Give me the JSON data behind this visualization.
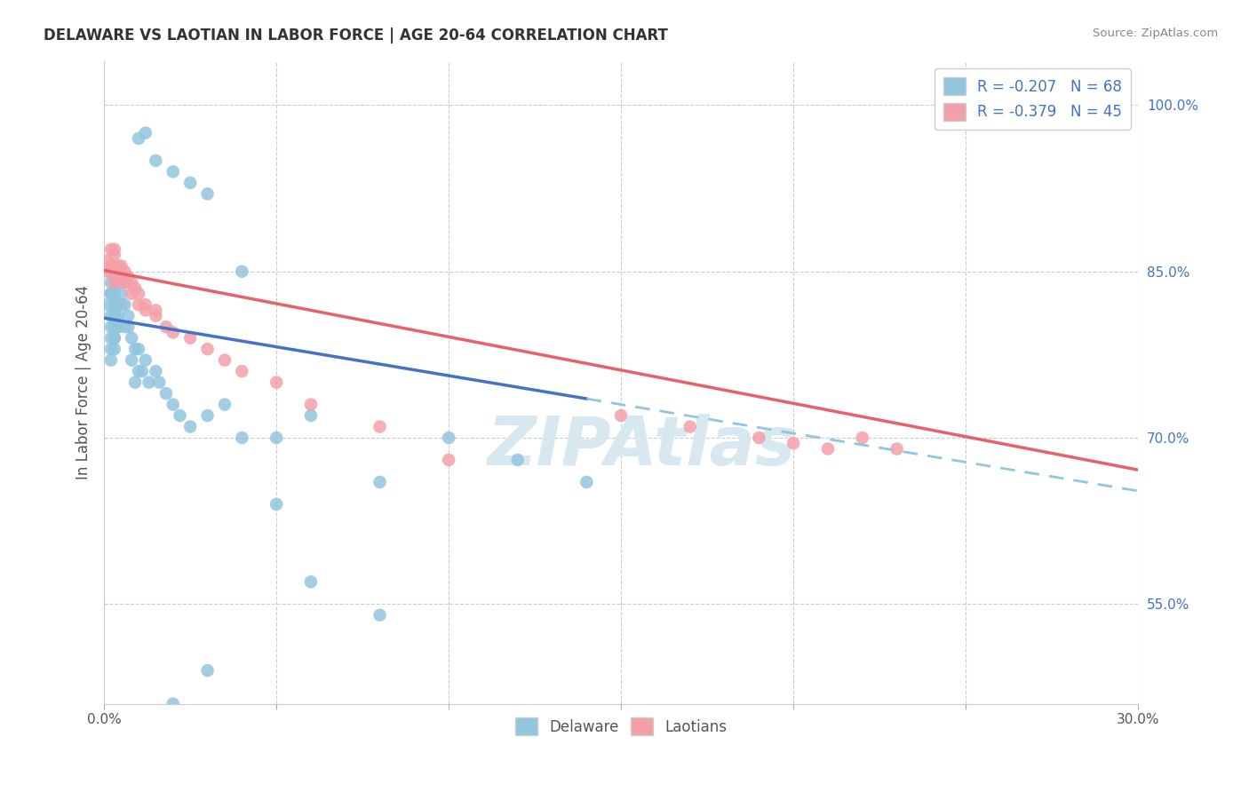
{
  "title": "DELAWARE VS LAOTIAN IN LABOR FORCE | AGE 20-64 CORRELATION CHART",
  "source": "Source: ZipAtlas.com",
  "ylabel": "In Labor Force | Age 20-64",
  "xlim": [
    0.0,
    0.3
  ],
  "ylim": [
    0.46,
    1.04
  ],
  "xticks": [
    0.0,
    0.05,
    0.1,
    0.15,
    0.2,
    0.25,
    0.3
  ],
  "xtick_labels": [
    "0.0%",
    "",
    "",
    "",
    "",
    "",
    "30.0%"
  ],
  "yticks_right": [
    0.55,
    0.7,
    0.85,
    1.0
  ],
  "ytick_right_labels": [
    "55.0%",
    "70.0%",
    "85.0%",
    "100.0%"
  ],
  "legend_r_delaware": "R = -0.207",
  "legend_n_delaware": "N = 68",
  "legend_r_laotian": "R = -0.379",
  "legend_n_laotian": "N = 45",
  "delaware_color": "#92C5DE",
  "laotian_color": "#F4A0A8",
  "trend_delaware_color": "#4472C4",
  "trend_laotian_color": "#E8606A",
  "trend_dashed_color": "#92C5DE",
  "watermark": "ZIPAtlas",
  "background_color": "#FFFFFF",
  "del_x": [
    0.001,
    0.004,
    0.003,
    0.002,
    0.003,
    0.002,
    0.003,
    0.002,
    0.003,
    0.002,
    0.003,
    0.002,
    0.004,
    0.003,
    0.002,
    0.003,
    0.004,
    0.003,
    0.002,
    0.003,
    0.004,
    0.003,
    0.002,
    0.004,
    0.003,
    0.005,
    0.004,
    0.006,
    0.005,
    0.007,
    0.006,
    0.008,
    0.007,
    0.009,
    0.008,
    0.01,
    0.009,
    0.01,
    0.012,
    0.011,
    0.015,
    0.013,
    0.018,
    0.016,
    0.02,
    0.022,
    0.025,
    0.03,
    0.035,
    0.04,
    0.01,
    0.012,
    0.015,
    0.02,
    0.025,
    0.03,
    0.04,
    0.05,
    0.06,
    0.08,
    0.1,
    0.12,
    0.14,
    0.06,
    0.08,
    0.03,
    0.02,
    0.05
  ],
  "del_y": [
    0.82,
    0.85,
    0.84,
    0.83,
    0.82,
    0.81,
    0.8,
    0.79,
    0.78,
    0.77,
    0.82,
    0.84,
    0.85,
    0.81,
    0.8,
    0.79,
    0.8,
    0.82,
    0.83,
    0.81,
    0.8,
    0.79,
    0.78,
    0.84,
    0.83,
    0.82,
    0.81,
    0.82,
    0.83,
    0.81,
    0.8,
    0.79,
    0.8,
    0.78,
    0.77,
    0.76,
    0.75,
    0.78,
    0.77,
    0.76,
    0.76,
    0.75,
    0.74,
    0.75,
    0.73,
    0.72,
    0.71,
    0.72,
    0.73,
    0.7,
    0.97,
    0.975,
    0.95,
    0.94,
    0.93,
    0.92,
    0.85,
    0.7,
    0.72,
    0.66,
    0.7,
    0.68,
    0.66,
    0.57,
    0.54,
    0.49,
    0.46,
    0.64
  ],
  "lao_x": [
    0.001,
    0.002,
    0.001,
    0.002,
    0.003,
    0.002,
    0.003,
    0.003,
    0.004,
    0.004,
    0.005,
    0.005,
    0.006,
    0.006,
    0.007,
    0.008,
    0.009,
    0.01,
    0.012,
    0.015,
    0.003,
    0.004,
    0.005,
    0.006,
    0.008,
    0.01,
    0.012,
    0.015,
    0.018,
    0.02,
    0.025,
    0.03,
    0.035,
    0.04,
    0.05,
    0.06,
    0.08,
    0.1,
    0.2,
    0.21,
    0.22,
    0.23,
    0.15,
    0.17,
    0.19
  ],
  "lao_y": [
    0.86,
    0.87,
    0.85,
    0.85,
    0.865,
    0.855,
    0.87,
    0.85,
    0.855,
    0.845,
    0.855,
    0.845,
    0.85,
    0.84,
    0.845,
    0.84,
    0.835,
    0.83,
    0.82,
    0.815,
    0.84,
    0.85,
    0.845,
    0.84,
    0.83,
    0.82,
    0.815,
    0.81,
    0.8,
    0.795,
    0.79,
    0.78,
    0.77,
    0.76,
    0.75,
    0.73,
    0.71,
    0.68,
    0.695,
    0.69,
    0.7,
    0.69,
    0.72,
    0.71,
    0.7
  ],
  "trend_del_x0": 0.0,
  "trend_del_y0": 0.808,
  "trend_del_slope": -0.52,
  "trend_del_solid_end": 0.14,
  "trend_lao_x0": 0.0,
  "trend_lao_y0": 0.851,
  "trend_lao_slope": -0.6
}
